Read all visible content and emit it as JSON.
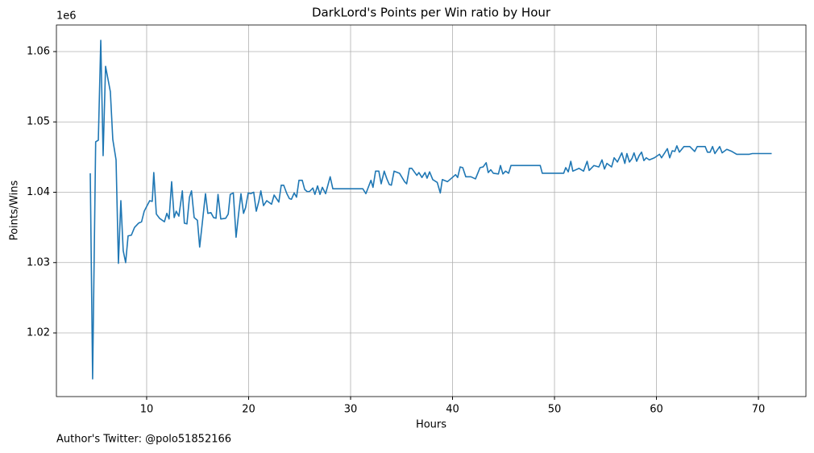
{
  "chart_data": {
    "type": "line",
    "title": "DarkLord's Points per Win ratio by Hour",
    "x_label": "Hours",
    "y_label": "Points/Wins",
    "y_offset_label": "1e6",
    "footnote": "Author's Twitter: @polo51852166",
    "color": "#1f77b4",
    "grid": true,
    "xlim": [
      1.15,
      74.66
    ],
    "ylim": [
      1010950,
      1063780
    ],
    "xticks": [
      10,
      20,
      30,
      40,
      50,
      60,
      70
    ],
    "yticks": [
      {
        "value": 1020000,
        "label": "1.02"
      },
      {
        "value": 1030000,
        "label": "1.03"
      },
      {
        "value": 1040000,
        "label": "1.04"
      },
      {
        "value": 1050000,
        "label": "1.05"
      },
      {
        "value": 1060000,
        "label": "1.06"
      }
    ],
    "x": [
      4.47,
      4.7,
      5.0,
      5.26,
      5.5,
      5.73,
      5.97,
      6.44,
      6.68,
      7.0,
      7.23,
      7.47,
      7.7,
      7.94,
      8.18,
      8.5,
      8.81,
      9.2,
      9.5,
      9.76,
      10.08,
      10.3,
      10.55,
      10.7,
      10.95,
      11.26,
      11.74,
      11.98,
      12.2,
      12.45,
      12.7,
      12.9,
      13.16,
      13.5,
      13.7,
      13.95,
      14.2,
      14.4,
      14.66,
      14.98,
      15.2,
      15.5,
      15.77,
      16.0,
      16.3,
      16.56,
      16.8,
      17.0,
      17.27,
      17.75,
      18.0,
      18.2,
      18.5,
      18.77,
      19.0,
      19.25,
      19.5,
      19.7,
      19.96,
      20.2,
      20.5,
      20.75,
      21.0,
      21.2,
      21.46,
      21.78,
      22.25,
      22.5,
      22.96,
      23.2,
      23.44,
      23.75,
      24.0,
      24.2,
      24.47,
      24.7,
      24.94,
      25.26,
      25.5,
      25.73,
      25.97,
      26.3,
      26.5,
      26.76,
      27.0,
      27.23,
      27.55,
      28.0,
      28.26,
      31.2,
      31.5,
      32.0,
      32.2,
      32.45,
      32.77,
      33.0,
      33.3,
      33.56,
      33.8,
      34.0,
      34.27,
      34.8,
      35.3,
      35.5,
      35.77,
      36.0,
      36.5,
      36.7,
      37.0,
      37.3,
      37.5,
      37.75,
      38.06,
      38.5,
      38.8,
      39.0,
      39.5,
      40.3,
      40.5,
      40.75,
      41.0,
      41.3,
      41.8,
      42.25,
      42.7,
      43.0,
      43.3,
      43.5,
      43.75,
      44.0,
      44.5,
      44.7,
      44.94,
      45.2,
      45.5,
      45.73,
      48.6,
      48.8,
      50.9,
      51.1,
      51.35,
      51.6,
      51.8,
      52.4,
      52.85,
      53.2,
      53.4,
      53.87,
      54.35,
      54.66,
      54.9,
      55.14,
      55.6,
      55.85,
      56.17,
      56.6,
      56.9,
      57.1,
      57.35,
      57.6,
      57.8,
      58.06,
      58.3,
      58.54,
      58.77,
      59.0,
      59.3,
      59.8,
      60.3,
      60.5,
      61.07,
      61.3,
      61.55,
      61.8,
      62.0,
      62.25,
      62.7,
      63.27,
      63.75,
      64.0,
      64.78,
      65.0,
      65.26,
      65.5,
      65.73,
      66.2,
      66.44,
      66.9,
      67.4,
      67.87,
      69.1,
      69.4,
      71.3
    ],
    "values": [
      1042700,
      1013470,
      1047170,
      1047400,
      1061600,
      1045200,
      1057900,
      1054300,
      1047500,
      1044600,
      1029900,
      1038800,
      1031700,
      1030000,
      1033800,
      1033900,
      1035000,
      1035600,
      1035800,
      1037300,
      1038200,
      1038800,
      1038700,
      1042800,
      1036900,
      1036300,
      1035800,
      1037000,
      1036200,
      1041500,
      1036400,
      1037300,
      1036600,
      1040200,
      1035600,
      1035500,
      1039300,
      1040200,
      1036400,
      1036000,
      1032200,
      1036200,
      1039800,
      1037000,
      1037100,
      1036400,
      1036300,
      1039700,
      1036200,
      1036300,
      1036900,
      1039700,
      1039900,
      1033600,
      1036700,
      1039800,
      1037000,
      1037800,
      1039900,
      1039800,
      1040000,
      1037300,
      1038700,
      1040200,
      1038100,
      1038800,
      1038300,
      1039600,
      1038600,
      1041000,
      1041000,
      1039800,
      1039100,
      1039000,
      1039900,
      1039300,
      1041700,
      1041700,
      1040400,
      1040100,
      1040100,
      1040600,
      1039700,
      1040900,
      1039700,
      1040700,
      1039800,
      1042200,
      1040500,
      1040500,
      1039800,
      1041700,
      1040700,
      1043000,
      1043000,
      1041200,
      1043000,
      1041900,
      1041100,
      1041000,
      1043000,
      1042700,
      1041500,
      1041200,
      1043400,
      1043400,
      1042400,
      1042800,
      1042100,
      1042800,
      1042000,
      1042900,
      1041800,
      1041400,
      1039900,
      1041800,
      1041500,
      1042500,
      1042100,
      1043600,
      1043500,
      1042200,
      1042200,
      1041900,
      1043500,
      1043600,
      1044200,
      1042800,
      1043200,
      1042700,
      1042600,
      1043800,
      1042600,
      1043000,
      1042700,
      1043800,
      1043800,
      1042700,
      1042700,
      1043500,
      1042900,
      1044400,
      1043000,
      1043400,
      1043000,
      1044400,
      1043100,
      1043800,
      1043600,
      1044600,
      1043300,
      1044100,
      1043600,
      1044900,
      1044300,
      1045600,
      1044100,
      1045500,
      1044300,
      1044800,
      1045600,
      1044400,
      1045200,
      1045700,
      1044500,
      1044900,
      1044600,
      1044900,
      1045400,
      1044900,
      1046200,
      1044900,
      1045900,
      1045800,
      1046600,
      1045700,
      1046500,
      1046500,
      1045800,
      1046500,
      1046500,
      1045700,
      1045700,
      1046500,
      1045500,
      1046500,
      1045600,
      1046100,
      1045800,
      1045400,
      1045400,
      1045500,
      1045500
    ]
  }
}
